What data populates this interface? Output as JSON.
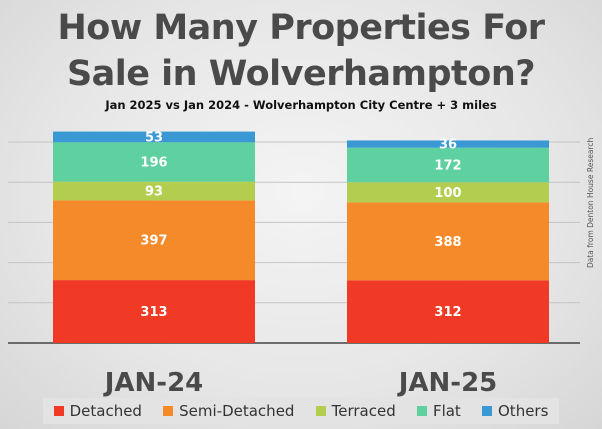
{
  "header": {
    "title_line1": "How Many Properties For",
    "title_line2": "Sale in Wolverhampton?",
    "subtitle": "Jan 2025 vs Jan 2024 - Wolverhampton City Centre + 3 miles"
  },
  "source_note": "Data from Denton House Research",
  "chart_data": {
    "type": "bar",
    "stacked": true,
    "categories": [
      "JAN-24",
      "JAN-25"
    ],
    "series": [
      {
        "name": "Detached",
        "color": "#f03a25",
        "values": [
          313,
          312
        ]
      },
      {
        "name": "Semi-Detached",
        "color": "#f58a2a",
        "values": [
          397,
          388
        ]
      },
      {
        "name": "Terraced",
        "color": "#b3ce4f",
        "values": [
          93,
          100
        ]
      },
      {
        "name": "Flat",
        "color": "#5fd1a1",
        "values": [
          196,
          172
        ]
      },
      {
        "name": "Others",
        "color": "#3a98d5",
        "values": [
          53,
          36
        ]
      }
    ],
    "ylim": [
      0,
      1050
    ],
    "grid": true,
    "legend_position": "bottom",
    "data_labels": true
  }
}
